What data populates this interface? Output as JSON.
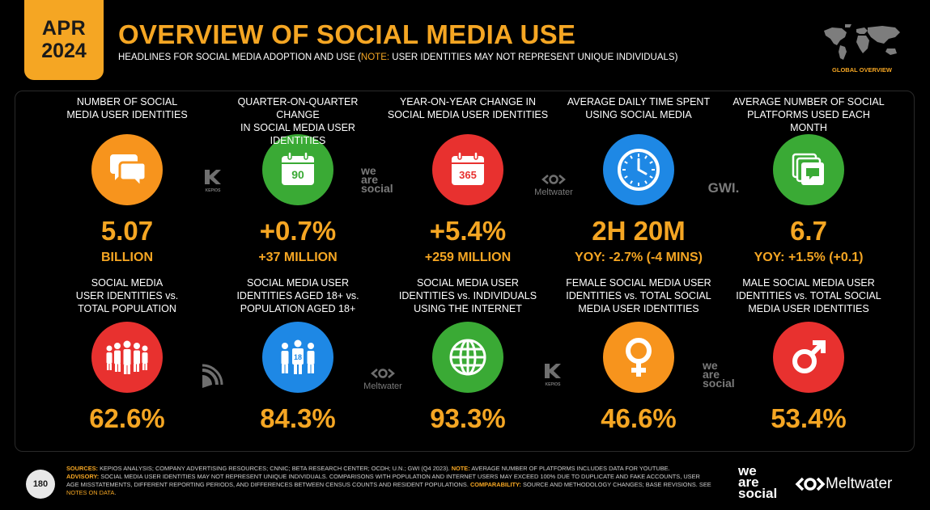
{
  "header": {
    "month": "APR",
    "year": "2024",
    "title": "OVERVIEW OF SOCIAL MEDIA USE",
    "subtitle_pre": "HEADLINES FOR SOCIAL MEDIA ADOPTION AND USE (",
    "subtitle_note": "NOTE:",
    "subtitle_post": " USER IDENTITIES MAY NOT REPRESENT UNIQUE INDIVIDUALS)",
    "map_label": "GLOBAL OVERVIEW"
  },
  "colors": {
    "accent": "#f5a623",
    "orange": "#f7941d",
    "green": "#3aaa35",
    "red": "#e8312f",
    "blue": "#1e88e5"
  },
  "cards": [
    {
      "label_1": "NUMBER OF SOCIAL",
      "label_2": "MEDIA USER IDENTITIES",
      "label_3": "",
      "value": "5.07",
      "sub": "BILLION",
      "icon": "chat-bubbles-icon"
    },
    {
      "label_1": "QUARTER-ON-QUARTER CHANGE",
      "label_2": "IN SOCIAL MEDIA USER IDENTITIES",
      "label_3": "",
      "value": "+0.7%",
      "sub": "+37 MILLION",
      "icon": "calendar-90-icon",
      "icon_text": "90"
    },
    {
      "label_1": "YEAR-ON-YEAR CHANGE IN",
      "label_2": "SOCIAL MEDIA USER IDENTITIES",
      "label_3": "",
      "value": "+5.4%",
      "sub": "+259 MILLION",
      "icon": "calendar-365-icon",
      "icon_text": "365"
    },
    {
      "label_1": "AVERAGE DAILY TIME SPENT",
      "label_2": "USING SOCIAL MEDIA",
      "label_3": "",
      "value": "2H 20M",
      "sub": "YOY: -2.7% (-4 MINS)",
      "icon": "clock-icon"
    },
    {
      "label_1": "AVERAGE NUMBER OF SOCIAL",
      "label_2": "PLATFORMS USED EACH MONTH",
      "label_3": "",
      "value": "6.7",
      "sub": "YOY: +1.5% (+0.1)",
      "icon": "stacked-windows-icon"
    },
    {
      "label_1": "SOCIAL MEDIA",
      "label_2": "USER IDENTITIES vs.",
      "label_3": "TOTAL POPULATION",
      "value": "62.6%",
      "sub": "",
      "icon": "crowd-icon"
    },
    {
      "label_1": "SOCIAL MEDIA USER",
      "label_2": "IDENTITIES AGED 18+ vs.",
      "label_3": "POPULATION AGED 18+",
      "value": "84.3%",
      "sub": "",
      "icon": "adults-18-icon",
      "icon_text": "18"
    },
    {
      "label_1": "SOCIAL MEDIA USER",
      "label_2": "IDENTITIES vs. INDIVIDUALS",
      "label_3": "USING THE INTERNET",
      "value": "93.3%",
      "sub": "",
      "icon": "globe-icon"
    },
    {
      "label_1": "FEMALE SOCIAL MEDIA USER",
      "label_2": "IDENTITIES vs. TOTAL SOCIAL",
      "label_3": "MEDIA USER IDENTITIES",
      "value": "46.6%",
      "sub": "",
      "icon": "female-symbol-icon"
    },
    {
      "label_1": "MALE SOCIAL MEDIA USER",
      "label_2": "IDENTITIES vs. TOTAL SOCIAL",
      "label_3": "MEDIA USER IDENTITIES",
      "value": "53.4%",
      "sub": "",
      "icon": "male-symbol-icon"
    }
  ],
  "separators": {
    "kepios": "KEPIOS",
    "we": "we",
    "are": "are",
    "social": "social",
    "meltwater": "Meltwater",
    "gwi": "GWI."
  },
  "footer": {
    "page_number": "180",
    "sources_label": "SOURCES:",
    "sources_text": " KEPIOS ANALYSIS; COMPANY ADVERTISING RESOURCES; CNNIC; BETA RESEARCH CENTER; OCDH; U.N.; GWI (Q4 2023).",
    "note_label": " NOTE:",
    "note_text": " AVERAGE NUMBER OF PLATFORMS INCLUDES DATA FOR YOUTUBE.",
    "advisory_label": "ADVISORY:",
    "advisory_text": " SOCIAL MEDIA USER IDENTITIES MAY NOT REPRESENT UNIQUE INDIVIDUALS. COMPARISONS WITH POPULATION AND INTERNET USERS MAY EXCEED 100% DUE TO DUPLICATE AND FAKE ACCOUNTS, USER AGE MISSTATEMENTS, DIFFERENT REPORTING PERIODS, AND DIFFERENCES BETWEEN CENSUS COUNTS AND RESIDENT POPULATIONS.",
    "comparability_label": " COMPARABILITY:",
    "comparability_text": " SOURCE AND METHODOLOGY CHANGES; BASE REVISIONS. SEE ",
    "notes_link": "NOTES ON DATA",
    "end": ".",
    "ws_we": "we",
    "ws_are": "are",
    "ws_social": "social",
    "mw_name": "Meltwater"
  }
}
